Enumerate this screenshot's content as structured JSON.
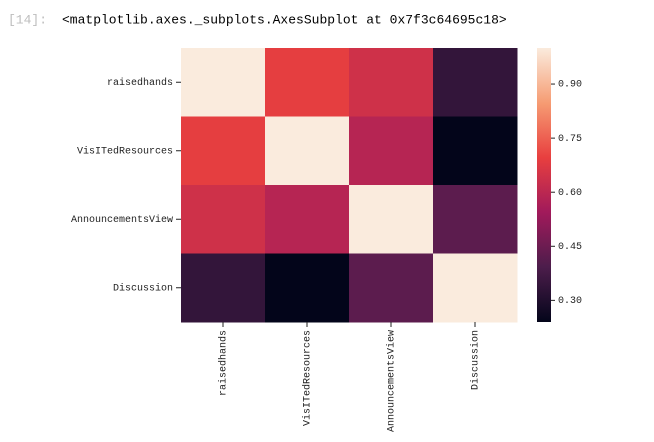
{
  "prompt": "[14]:",
  "output": "<matplotlib.axes._subplots.AxesSubplot at 0x7f3c64695c18>",
  "chart_data": {
    "type": "heatmap",
    "rows": [
      "raisedhands",
      "VisITedResources",
      "AnnouncementsView",
      "Discussion"
    ],
    "columns": [
      "raisedhands",
      "VisITedResources",
      "AnnouncementsView",
      "Discussion"
    ],
    "values": [
      [
        1.0,
        0.69,
        0.64,
        0.34
      ],
      [
        0.69,
        1.0,
        0.59,
        0.24
      ],
      [
        0.64,
        0.59,
        1.0,
        0.42
      ],
      [
        0.34,
        0.24,
        0.42,
        1.0
      ]
    ],
    "colormap": "rocket",
    "colorbar_lim": [
      0.24,
      1.0
    ],
    "colorbar_ticks": [
      {
        "value": 0.3,
        "label": "0.30"
      },
      {
        "value": 0.45,
        "label": "0.45"
      },
      {
        "value": 0.6,
        "label": "0.60"
      },
      {
        "value": 0.75,
        "label": "0.75"
      },
      {
        "value": 0.9,
        "label": "0.90"
      }
    ]
  }
}
